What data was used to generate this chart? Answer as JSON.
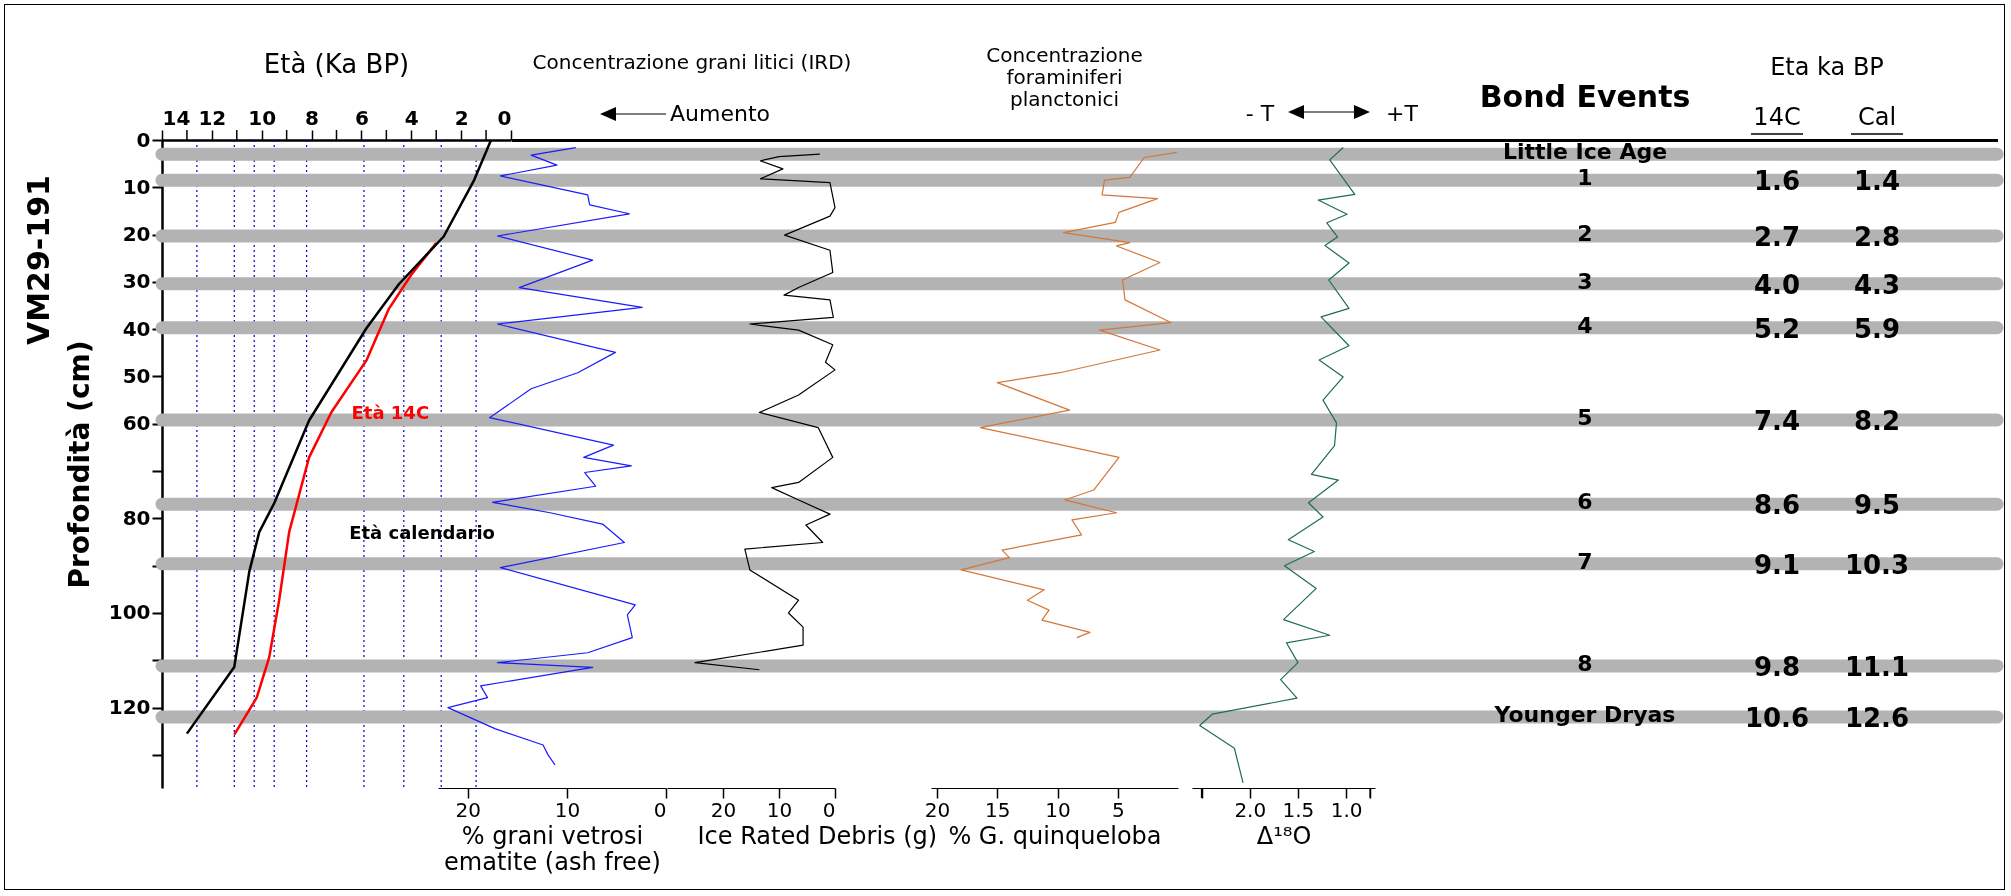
{
  "chart_data": [
    {
      "type": "line",
      "title": "Età (Ka BP)",
      "ylabel": "Profondità (cm)",
      "annotations": [
        "VM29-191"
      ],
      "xlim": [
        14,
        0
      ],
      "xticks": [
        14,
        {
          "value": 13,
          "label": null
        },
        12,
        {
          "value": 11,
          "label": null
        },
        10,
        {
          "value": 9,
          "label": null
        },
        8,
        {
          "value": 7,
          "label": null
        },
        6,
        {
          "value": 5,
          "label": null
        },
        4,
        {
          "value": 3,
          "label": null
        },
        2,
        {
          "value": 1,
          "label": null
        },
        0
      ],
      "ylim": [
        137,
        0
      ],
      "yticks": [
        0,
        10,
        20,
        30,
        40,
        50,
        60,
        {
          "value": 70,
          "label": null
        },
        80,
        {
          "value": 90,
          "label": null
        },
        100,
        {
          "value": 110,
          "label": null
        },
        120,
        {
          "value": 130,
          "label": null
        }
      ],
      "series": [
        {
          "name": "Età 14C",
          "color": "#ff0000",
          "x": [
            3.0,
            4.0,
            4.9,
            5.8,
            7.2,
            8.1,
            8.9,
            9.3,
            9.7,
            10.2,
            11.1
          ],
          "values": [
            21.8,
            28.5,
            35.7,
            46.6,
            57.5,
            67.1,
            82.9,
            97.3,
            109.4,
            117.9,
            125.7
          ]
        },
        {
          "name": "Età calendario",
          "color": "#000000",
          "x": [
            0.8,
            1.5,
            2.7,
            4.5,
            5.8,
            8.1,
            9.5,
            10.1,
            10.5,
            11.1,
            13.0
          ],
          "values": [
            0,
            8.7,
            20.4,
            30.5,
            39.8,
            59.3,
            76.8,
            82.9,
            91.3,
            111.4,
            125.5
          ]
        }
      ],
      "ref_lines": [
        {
          "axis": "x",
          "value": 1.4,
          "color": "#0000cc",
          "line_style": "dotted"
        },
        {
          "axis": "x",
          "value": 2.8,
          "color": "#0000cc",
          "line_style": "dotted"
        },
        {
          "axis": "x",
          "value": 4.3,
          "color": "#0000cc",
          "line_style": "dotted"
        },
        {
          "axis": "x",
          "value": 5.9,
          "color": "#0000cc",
          "line_style": "dotted"
        },
        {
          "axis": "x",
          "value": 8.2,
          "color": "#0000cc",
          "line_style": "dotted"
        },
        {
          "axis": "x",
          "value": 9.5,
          "color": "#0000cc",
          "line_style": "dotted"
        },
        {
          "axis": "x",
          "value": 10.3,
          "color": "#0000cc",
          "line_style": "dotted"
        },
        {
          "axis": "x",
          "value": 11.1,
          "color": "#0000cc",
          "line_style": "dotted"
        },
        {
          "axis": "x",
          "value": 12.6,
          "color": "#0000cc",
          "line_style": "dotted"
        },
        {
          "axis": "y",
          "value": 3,
          "color": "#b3b3b3"
        },
        {
          "axis": "y",
          "value": 8.5,
          "color": "#b3b3b3"
        },
        {
          "axis": "y",
          "value": 20.3,
          "color": "#b3b3b3"
        },
        {
          "axis": "y",
          "value": 30.4,
          "color": "#b3b3b3"
        },
        {
          "axis": "y",
          "value": 39.7,
          "color": "#b3b3b3"
        },
        {
          "axis": "y",
          "value": 59.2,
          "color": "#b3b3b3"
        },
        {
          "axis": "y",
          "value": 77,
          "color": "#b3b3b3"
        },
        {
          "axis": "y",
          "value": 89.6,
          "color": "#b3b3b3"
        },
        {
          "axis": "y",
          "value": 111.2,
          "color": "#b3b3b3"
        },
        {
          "axis": "y",
          "value": 122,
          "color": "#b3b3b3"
        }
      ]
    },
    {
      "type": "line",
      "title": "Concentrazione grani litici (IRD)",
      "xlabel": "% grani vetrosi\nematite (ash free)",
      "annotations": [
        "Aumento"
      ],
      "tick_labels": "x",
      "xlim": [
        23,
        0
      ],
      "xticks": [
        20,
        10,
        0
      ],
      "ylim": [
        137,
        0
      ],
      "series": [
        {
          "color": "#1a1aff",
          "x": [
            9.1,
            13.6,
            11.0,
            16.7,
            7.9,
            7.7,
            3.7,
            17.0,
            7.4,
            14.8,
            2.4,
            17.0,
            5.1,
            8.9,
            13.6,
            17.8,
            5.3,
            8.3,
            3.5,
            8.2,
            7.1,
            17.5,
            11.7,
            6.4,
            4.2,
            16.7,
            3.1,
            3.9,
            3.4,
            7.9,
            17.0,
            7.4,
            18.7,
            18.0,
            22.0,
            17.2,
            12.4,
            11.9,
            11.2
          ],
          "values": [
            1.6,
            3.2,
            5.3,
            7.6,
            11.6,
            13.7,
            15.6,
            20.3,
            25.4,
            31.2,
            35.4,
            38.9,
            44.9,
            49.2,
            52.6,
            58.7,
            64.5,
            67.1,
            68.9,
            70.3,
            73.2,
            76.6,
            78.8,
            81.2,
            85.1,
            90.4,
            98.3,
            100.4,
            105.2,
            108.4,
            110.5,
            111.5,
            115.4,
            117.9,
            120.0,
            124.5,
            127.9,
            130.0,
            132.1
          ]
        }
      ]
    },
    {
      "type": "line",
      "xlabel": "Ice Rated Debris (g)",
      "tick_labels": "x",
      "xlim": [
        30,
        0
      ],
      "xticks": [
        20,
        10,
        0
      ],
      "ylim": [
        137,
        0
      ],
      "series": [
        {
          "color": "#000000",
          "x": [
            2.7,
            10.0,
            13.3,
            9.3,
            13.3,
            0.9,
            0,
            0.9,
            9.0,
            0.9,
            0.4,
            6.5,
            9.1,
            0.9,
            0.3,
            15.2,
            6.5,
            0.4,
            1.7,
            0,
            6.5,
            13.5,
            3.0,
            0.4,
            6.5,
            11.3,
            6.5,
            0.9,
            5.2,
            2.2,
            16.1,
            15.2,
            6.5,
            8.3,
            5.7,
            5.7,
            25.0,
            13.5
          ],
          "values": [
            3.0,
            3.5,
            4.4,
            6.1,
            8.2,
            9.0,
            14.3,
            16.1,
            20.1,
            23.3,
            28.0,
            31.2,
            32.8,
            33.8,
            37.5,
            38.9,
            40.2,
            43.3,
            47.0,
            48.6,
            53.9,
            57.6,
            60.8,
            67.1,
            72.4,
            73.5,
            76.1,
            79.1,
            81.4,
            85.1,
            86.5,
            90.9,
            97.3,
            100.0,
            103.0,
            106.8,
            110.5,
            112.0
          ]
        }
      ]
    },
    {
      "type": "line",
      "title": "Concentrazione\nforaminiferi\nplanctonici",
      "xlabel": "% G. quinqueloba",
      "tick_labels": "x",
      "xlim": [
        20.5,
        0
      ],
      "xticks": [
        20,
        15,
        10,
        5
      ],
      "ylim": [
        137,
        0
      ],
      "series": [
        {
          "color": "#d2773a",
          "x": [
            0.1,
            2.8,
            4.0,
            6.1,
            6.3,
            1.7,
            4.9,
            5.2,
            9.5,
            4.0,
            5.1,
            1.5,
            4.6,
            4.4,
            0.6,
            6.5,
            1.5,
            9.8,
            15.0,
            9.0,
            16.4,
            4.9,
            7.0,
            9.4,
            5.1,
            8.8,
            8.0,
            14.6,
            14.0,
            18.0,
            11.1,
            12.5,
            10.7,
            11.3,
            7.3,
            8.4
          ],
          "values": [
            2.6,
            3.7,
            7.9,
            8.5,
            11.6,
            12.4,
            15.3,
            17.4,
            19.6,
            21.7,
            22.4,
            25.9,
            29.6,
            33.8,
            38.6,
            40.2,
            44.4,
            49.2,
            51.3,
            57.1,
            60.8,
            67.1,
            74.0,
            76.1,
            78.8,
            80.3,
            83.5,
            86.7,
            88.3,
            90.9,
            95.1,
            97.3,
            99.4,
            101.5,
            104.1,
            105.2
          ]
        }
      ]
    },
    {
      "type": "line",
      "xlabel": "Δ¹⁸O",
      "annotations": [
        "- T",
        "+T"
      ],
      "tick_labels": "x",
      "xlim": [
        2.6,
        0.7
      ],
      "xticks": [
        {
          "value": 2.5,
          "label": null
        },
        {
          "value": 2,
          "label": "2.0"
        },
        {
          "value": 1.5,
          "label": "1.5"
        },
        {
          "value": 1,
          "label": "1.0"
        },
        {
          "value": 0.75,
          "label": null
        }
      ],
      "ylim": [
        137,
        0
      ],
      "series": [
        {
          "color": "#1f6e4e",
          "x": [
            1.03,
            1.17,
            0.91,
            1.29,
            0.99,
            1.2,
            1.09,
            1.22,
            0.97,
            1.18,
            0.97,
            1.26,
            0.97,
            1.28,
            1.03,
            1.24,
            1.1,
            1.12,
            1.36,
            1.08,
            1.39,
            1.24,
            1.6,
            1.33,
            1.64,
            1.31,
            1.65,
            1.17,
            1.62,
            1.5,
            1.68,
            1.51,
            2.39,
            2.52,
            2.16,
            2.07
          ],
          "values": [
            1.6,
            4.2,
            11.5,
            12.7,
            15.7,
            17.5,
            20.5,
            22.3,
            26.0,
            29.6,
            35.6,
            37.4,
            43.5,
            46.5,
            50.1,
            55.0,
            59.8,
            64.6,
            70.7,
            71.9,
            76.7,
            79.7,
            84.5,
            87.0,
            90.0,
            94.8,
            101.4,
            104.7,
            106.3,
            110.5,
            114.1,
            118.0,
            121.4,
            123.8,
            128.6,
            135.9
          ]
        }
      ]
    },
    {
      "type": "other",
      "title": "Bond Events",
      "subtitle": "Eta ka BP",
      "categories": [
        "14C",
        "Cal"
      ],
      "y_categories": [
        "Little Ice Age",
        "1",
        "2",
        "3",
        "4",
        "5",
        "6",
        "7",
        "8",
        "Younger Dryas"
      ],
      "cell_labels": [
        [
          null,
          null
        ],
        [
          "1.6",
          "1.4"
        ],
        [
          "2.7",
          "2.8"
        ],
        [
          "4.0",
          "4.3"
        ],
        [
          "5.2",
          "5.9"
        ],
        [
          "7.4",
          "8.2"
        ],
        [
          "8.6",
          "9.5"
        ],
        [
          "9.1",
          "10.3"
        ],
        [
          "9.8",
          "11.1"
        ],
        [
          "10.6",
          "12.6"
        ]
      ]
    }
  ]
}
